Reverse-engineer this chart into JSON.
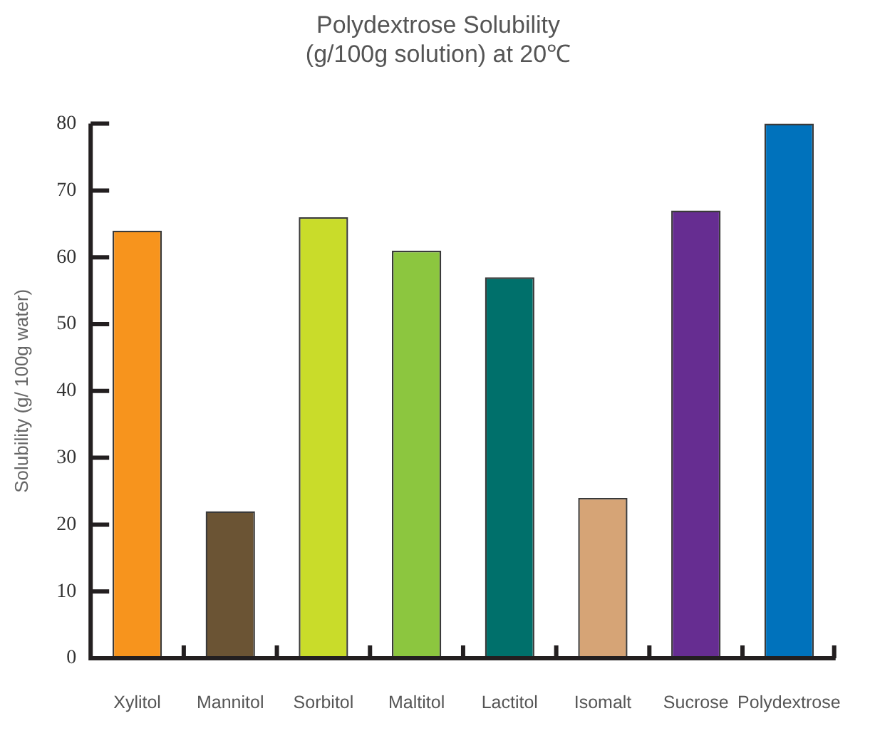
{
  "chart_data": {
    "type": "bar",
    "title": "Polydextrose Solubility\n(g/100g solution) at 20℃",
    "ylabel": "Solubility (g/ 100g water)",
    "categories": [
      "Xylitol",
      "Mannitol",
      "Sorbitol",
      "Maltitol",
      "Lactitol",
      "Isomalt",
      "Sucrose",
      "Polydextrose"
    ],
    "values": [
      64,
      22,
      66,
      61,
      57,
      24,
      67,
      80
    ],
    "colors": [
      "#f7941d",
      "#6b5434",
      "#c9dc2a",
      "#8cc63f",
      "#00706b",
      "#d6a476",
      "#662d91",
      "#0072bc"
    ],
    "ylim": [
      0,
      80
    ],
    "yticks": [
      0,
      10,
      20,
      30,
      40,
      50,
      60,
      70,
      80
    ],
    "grid": false,
    "legend": false
  }
}
